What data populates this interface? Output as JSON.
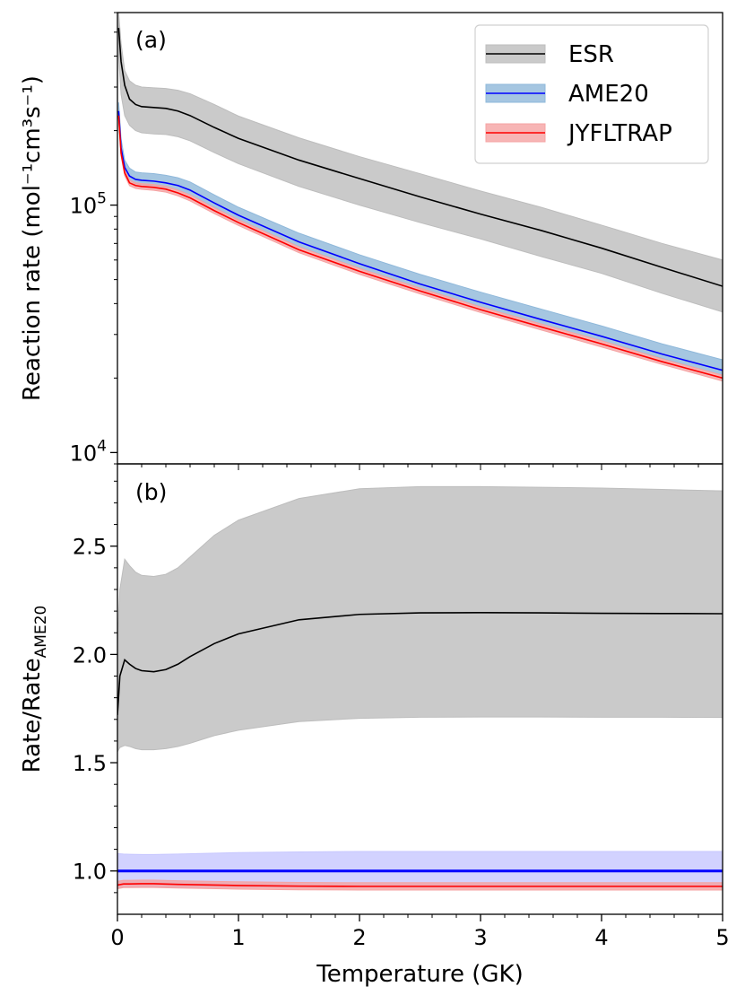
{
  "chart_data": [
    {
      "panel": "(a)",
      "type": "line",
      "ylabel": "Reaction rate (mol⁻¹cm³s⁻¹)",
      "xlabel": "",
      "yscale": "log",
      "xlim": [
        0,
        5
      ],
      "ylim": [
        9000,
        600000
      ],
      "ytick_labels": [
        {
          "value": 10000,
          "base": "10",
          "exp": "4"
        },
        {
          "value": 100000,
          "base": "10",
          "exp": "5"
        }
      ],
      "legend": {
        "placement": "top-right"
      },
      "series": [
        {
          "name": "ESR",
          "color": "#000000",
          "band_color": "#bdbdbd",
          "x": [
            0.01,
            0.03,
            0.06,
            0.1,
            0.15,
            0.2,
            0.3,
            0.4,
            0.5,
            0.6,
            0.8,
            1.0,
            1.5,
            2.0,
            2.5,
            3.0,
            3.5,
            4.0,
            4.5,
            5.0
          ],
          "y": [
            520000,
            380000,
            305000,
            268000,
            255000,
            250000,
            248000,
            246000,
            240000,
            230000,
            206000,
            186000,
            152000,
            128000,
            108000,
            92000,
            79000,
            67000,
            56000,
            47000
          ],
          "lower": [
            400000,
            280000,
            230000,
            210000,
            200000,
            196000,
            194000,
            193000,
            189000,
            182000,
            163000,
            147000,
            119000,
            100000,
            85000,
            73000,
            62000,
            53000,
            44000,
            37000
          ],
          "upper": [
            600000,
            450000,
            350000,
            318000,
            305000,
            300000,
            298000,
            296000,
            291000,
            282000,
            255000,
            229000,
            187000,
            157000,
            134000,
            114000,
            98000,
            83000,
            70000,
            60000
          ]
        },
        {
          "name": "AME20",
          "color": "#0000ff",
          "band_color": "#8fb8da",
          "x": [
            0.01,
            0.03,
            0.06,
            0.1,
            0.15,
            0.2,
            0.3,
            0.4,
            0.5,
            0.6,
            0.8,
            1.0,
            1.5,
            2.0,
            2.5,
            3.0,
            3.5,
            4.0,
            4.5,
            5.0
          ],
          "y": [
            240000,
            170000,
            142000,
            131000,
            127000,
            126000,
            125000,
            123000,
            120000,
            115000,
            102000,
            91000,
            71000,
            58000,
            48000,
            40500,
            34500,
            29500,
            25000,
            21500
          ],
          "lower": [
            225000,
            160000,
            136000,
            126000,
            122000,
            121000,
            120000,
            118000,
            115000,
            110000,
            98000,
            87000,
            68000,
            55500,
            46000,
            38800,
            33000,
            28300,
            24000,
            20500
          ],
          "upper": [
            260000,
            185000,
            152000,
            141000,
            136000,
            135000,
            134000,
            132000,
            129000,
            124000,
            110000,
            98000,
            77000,
            63000,
            52500,
            44500,
            38000,
            32500,
            27500,
            23700
          ]
        },
        {
          "name": "JYFLTRAP",
          "color": "#ff0000",
          "band_color": "#f5a3a3",
          "x": [
            0.01,
            0.03,
            0.06,
            0.1,
            0.15,
            0.2,
            0.3,
            0.4,
            0.5,
            0.6,
            0.8,
            1.0,
            1.5,
            2.0,
            2.5,
            3.0,
            3.5,
            4.0,
            4.5,
            5.0
          ],
          "y": [
            230000,
            162000,
            135000,
            123000,
            120000,
            119000,
            118000,
            116000,
            112000,
            107000,
            95000,
            85000,
            66000,
            54000,
            45000,
            37800,
            32200,
            27500,
            23300,
            20000
          ],
          "lower": [
            224000,
            158000,
            131500,
            119800,
            116800,
            115800,
            114800,
            112800,
            109000,
            104000,
            92400,
            82700,
            64200,
            52500,
            43800,
            36800,
            31300,
            26700,
            22700,
            19450
          ],
          "upper": [
            236000,
            166000,
            138500,
            126200,
            123200,
            122200,
            121200,
            119200,
            115000,
            110000,
            97600,
            87300,
            67800,
            55500,
            46200,
            38800,
            33100,
            28300,
            23900,
            20550
          ]
        }
      ]
    },
    {
      "panel": "(b)",
      "type": "line",
      "xlabel": "Temperature (GK)",
      "ylabel_base": "Rate/Rate",
      "ylabel_sub": "AME20",
      "xlim": [
        0,
        5
      ],
      "ylim": [
        0.8,
        2.88
      ],
      "xticks": [
        0,
        1,
        2,
        3,
        4,
        5
      ],
      "xtick_labels": [
        "0",
        "1",
        "2",
        "3",
        "4",
        "5"
      ],
      "yticks": [
        1.0,
        1.5,
        2.0,
        2.5
      ],
      "ytick_labels": [
        "1.0",
        "1.5",
        "2.0",
        "2.5"
      ],
      "series": [
        {
          "name": "ESR",
          "color": "#000000",
          "band_color": "#bdbdbd",
          "x": [
            0.0,
            0.02,
            0.06,
            0.1,
            0.15,
            0.2,
            0.3,
            0.4,
            0.5,
            0.6,
            0.8,
            1.0,
            1.5,
            2.0,
            2.5,
            3.0,
            3.5,
            4.0,
            4.5,
            5.0
          ],
          "y": [
            1.72,
            1.9,
            1.975,
            1.955,
            1.935,
            1.925,
            1.92,
            1.93,
            1.955,
            1.99,
            2.05,
            2.095,
            2.16,
            2.185,
            2.192,
            2.193,
            2.192,
            2.19,
            2.189,
            2.188
          ],
          "lower": [
            1.55,
            1.57,
            1.58,
            1.575,
            1.565,
            1.56,
            1.56,
            1.565,
            1.575,
            1.59,
            1.625,
            1.65,
            1.69,
            1.705,
            1.71,
            1.711,
            1.711,
            1.71,
            1.71,
            1.709
          ],
          "upper": [
            2.05,
            2.3,
            2.44,
            2.41,
            2.38,
            2.365,
            2.36,
            2.37,
            2.4,
            2.45,
            2.55,
            2.62,
            2.72,
            2.765,
            2.775,
            2.775,
            2.772,
            2.768,
            2.762,
            2.755
          ]
        },
        {
          "name": "AME20",
          "color": "#0000ff",
          "band_color": "#c7c7ff",
          "x": [
            0.0,
            0.05,
            0.1,
            0.2,
            0.3,
            0.5,
            1.0,
            1.5,
            2.0,
            2.5,
            3.0,
            3.5,
            4.0,
            4.5,
            5.0
          ],
          "y": [
            1.0,
            1.0,
            1.0,
            1.0,
            1.0,
            1.0,
            1.0,
            1.0,
            1.0,
            1.0,
            1.0,
            1.0,
            1.0,
            1.0,
            1.0
          ],
          "lower": [
            0.925,
            0.925,
            0.925,
            0.925,
            0.925,
            0.925,
            0.925,
            0.925,
            0.925,
            0.925,
            0.925,
            0.925,
            0.925,
            0.925,
            0.925
          ],
          "upper": [
            1.08,
            1.078,
            1.077,
            1.076,
            1.076,
            1.078,
            1.085,
            1.088,
            1.09,
            1.09,
            1.09,
            1.09,
            1.09,
            1.09,
            1.09
          ]
        },
        {
          "name": "JYFLTRAP",
          "color": "#ff0000",
          "band_color": "#f5a3a3",
          "x": [
            0.0,
            0.05,
            0.1,
            0.2,
            0.3,
            0.5,
            1.0,
            1.5,
            2.0,
            2.5,
            3.0,
            3.5,
            4.0,
            4.5,
            5.0
          ],
          "y": [
            0.935,
            0.94,
            0.94,
            0.941,
            0.941,
            0.938,
            0.933,
            0.93,
            0.929,
            0.929,
            0.929,
            0.929,
            0.929,
            0.929,
            0.929
          ],
          "lower": [
            0.918,
            0.923,
            0.923,
            0.924,
            0.924,
            0.921,
            0.916,
            0.913,
            0.912,
            0.912,
            0.912,
            0.912,
            0.912,
            0.912,
            0.912
          ],
          "upper": [
            0.952,
            0.957,
            0.957,
            0.958,
            0.958,
            0.955,
            0.95,
            0.947,
            0.946,
            0.946,
            0.946,
            0.946,
            0.946,
            0.946,
            0.946
          ]
        }
      ]
    }
  ]
}
